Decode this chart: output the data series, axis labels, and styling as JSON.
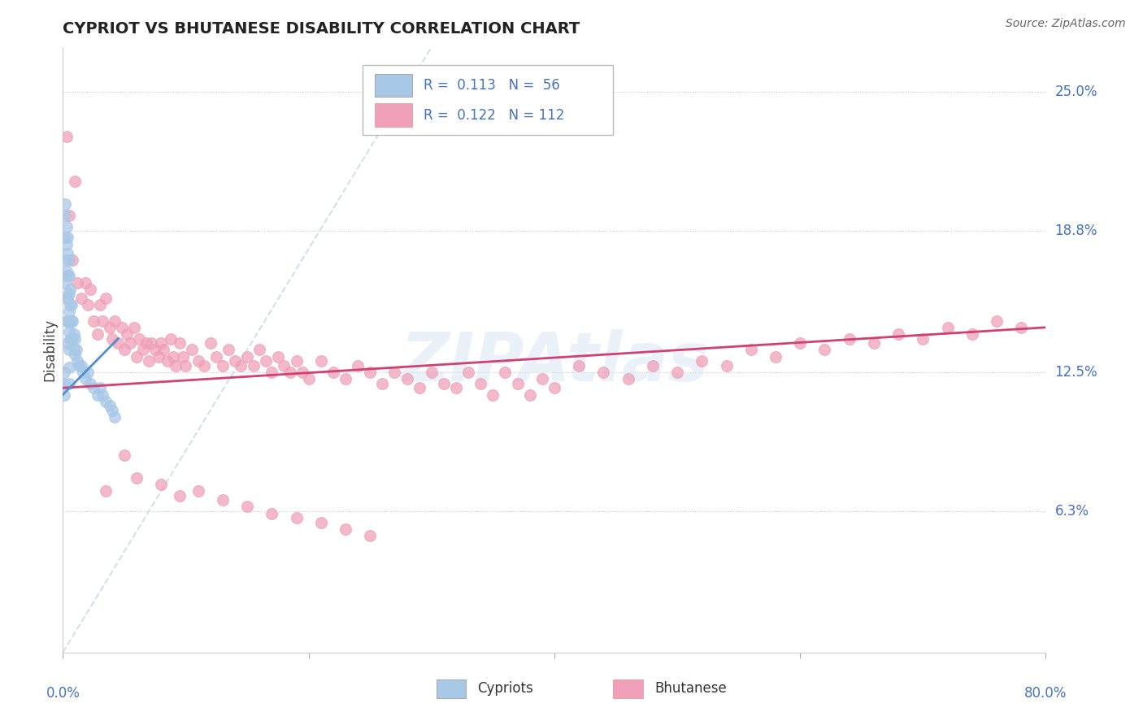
{
  "title": "CYPRIOT VS BHUTANESE DISABILITY CORRELATION CHART",
  "source": "Source: ZipAtlas.com",
  "ylabel": "Disability",
  "ytick_labels": [
    "6.3%",
    "12.5%",
    "18.8%",
    "25.0%"
  ],
  "ytick_values": [
    0.063,
    0.125,
    0.188,
    0.25
  ],
  "xlim": [
    0.0,
    0.8
  ],
  "ylim": [
    0.0,
    0.27
  ],
  "cypriot_color": "#a8c8e8",
  "bhutanese_color": "#f0a0b8",
  "trend_cypriot_color": "#5090d0",
  "trend_bhutanese_color": "#d04070",
  "diagonal_color": "#c8d8ec",
  "background_color": "#ffffff",
  "grid_color": "#c8c8c8",
  "watermark": "ZIPAtlas",
  "cypriot_x": [
    0.001,
    0.001,
    0.001,
    0.002,
    0.002,
    0.002,
    0.002,
    0.002,
    0.003,
    0.003,
    0.003,
    0.003,
    0.003,
    0.004,
    0.004,
    0.004,
    0.004,
    0.004,
    0.004,
    0.005,
    0.005,
    0.005,
    0.005,
    0.005,
    0.005,
    0.005,
    0.005,
    0.006,
    0.006,
    0.006,
    0.006,
    0.007,
    0.007,
    0.007,
    0.008,
    0.008,
    0.009,
    0.009,
    0.01,
    0.01,
    0.011,
    0.012,
    0.013,
    0.015,
    0.016,
    0.018,
    0.02,
    0.022,
    0.025,
    0.028,
    0.03,
    0.032,
    0.035,
    0.038,
    0.04,
    0.042
  ],
  "cypriot_y": [
    0.125,
    0.12,
    0.115,
    0.2,
    0.195,
    0.185,
    0.175,
    0.165,
    0.19,
    0.182,
    0.17,
    0.158,
    0.148,
    0.185,
    0.178,
    0.168,
    0.158,
    0.148,
    0.138,
    0.175,
    0.168,
    0.16,
    0.152,
    0.143,
    0.135,
    0.127,
    0.12,
    0.162,
    0.155,
    0.147,
    0.14,
    0.155,
    0.148,
    0.14,
    0.148,
    0.14,
    0.142,
    0.135,
    0.14,
    0.133,
    0.135,
    0.13,
    0.128,
    0.128,
    0.125,
    0.122,
    0.125,
    0.12,
    0.118,
    0.115,
    0.118,
    0.115,
    0.112,
    0.11,
    0.108,
    0.105
  ],
  "bhutanese_x": [
    0.003,
    0.005,
    0.008,
    0.01,
    0.012,
    0.015,
    0.018,
    0.02,
    0.022,
    0.025,
    0.028,
    0.03,
    0.032,
    0.035,
    0.038,
    0.04,
    0.042,
    0.045,
    0.048,
    0.05,
    0.052,
    0.055,
    0.058,
    0.06,
    0.062,
    0.065,
    0.068,
    0.07,
    0.072,
    0.075,
    0.078,
    0.08,
    0.082,
    0.085,
    0.088,
    0.09,
    0.092,
    0.095,
    0.098,
    0.1,
    0.105,
    0.11,
    0.115,
    0.12,
    0.125,
    0.13,
    0.135,
    0.14,
    0.145,
    0.15,
    0.155,
    0.16,
    0.165,
    0.17,
    0.175,
    0.18,
    0.185,
    0.19,
    0.195,
    0.2,
    0.21,
    0.22,
    0.23,
    0.24,
    0.25,
    0.26,
    0.27,
    0.28,
    0.29,
    0.3,
    0.31,
    0.32,
    0.33,
    0.34,
    0.35,
    0.36,
    0.37,
    0.38,
    0.39,
    0.4,
    0.42,
    0.44,
    0.46,
    0.48,
    0.5,
    0.52,
    0.54,
    0.56,
    0.58,
    0.6,
    0.62,
    0.64,
    0.66,
    0.68,
    0.7,
    0.72,
    0.74,
    0.76,
    0.78,
    0.05,
    0.035,
    0.06,
    0.08,
    0.095,
    0.11,
    0.13,
    0.15,
    0.17,
    0.19,
    0.21,
    0.23,
    0.25
  ],
  "bhutanese_y": [
    0.23,
    0.195,
    0.175,
    0.21,
    0.165,
    0.158,
    0.165,
    0.155,
    0.162,
    0.148,
    0.142,
    0.155,
    0.148,
    0.158,
    0.145,
    0.14,
    0.148,
    0.138,
    0.145,
    0.135,
    0.142,
    0.138,
    0.145,
    0.132,
    0.14,
    0.135,
    0.138,
    0.13,
    0.138,
    0.135,
    0.132,
    0.138,
    0.135,
    0.13,
    0.14,
    0.132,
    0.128,
    0.138,
    0.132,
    0.128,
    0.135,
    0.13,
    0.128,
    0.138,
    0.132,
    0.128,
    0.135,
    0.13,
    0.128,
    0.132,
    0.128,
    0.135,
    0.13,
    0.125,
    0.132,
    0.128,
    0.125,
    0.13,
    0.125,
    0.122,
    0.13,
    0.125,
    0.122,
    0.128,
    0.125,
    0.12,
    0.125,
    0.122,
    0.118,
    0.125,
    0.12,
    0.118,
    0.125,
    0.12,
    0.115,
    0.125,
    0.12,
    0.115,
    0.122,
    0.118,
    0.128,
    0.125,
    0.122,
    0.128,
    0.125,
    0.13,
    0.128,
    0.135,
    0.132,
    0.138,
    0.135,
    0.14,
    0.138,
    0.142,
    0.14,
    0.145,
    0.142,
    0.148,
    0.145,
    0.088,
    0.072,
    0.078,
    0.075,
    0.07,
    0.072,
    0.068,
    0.065,
    0.062,
    0.06,
    0.058,
    0.055,
    0.052
  ]
}
